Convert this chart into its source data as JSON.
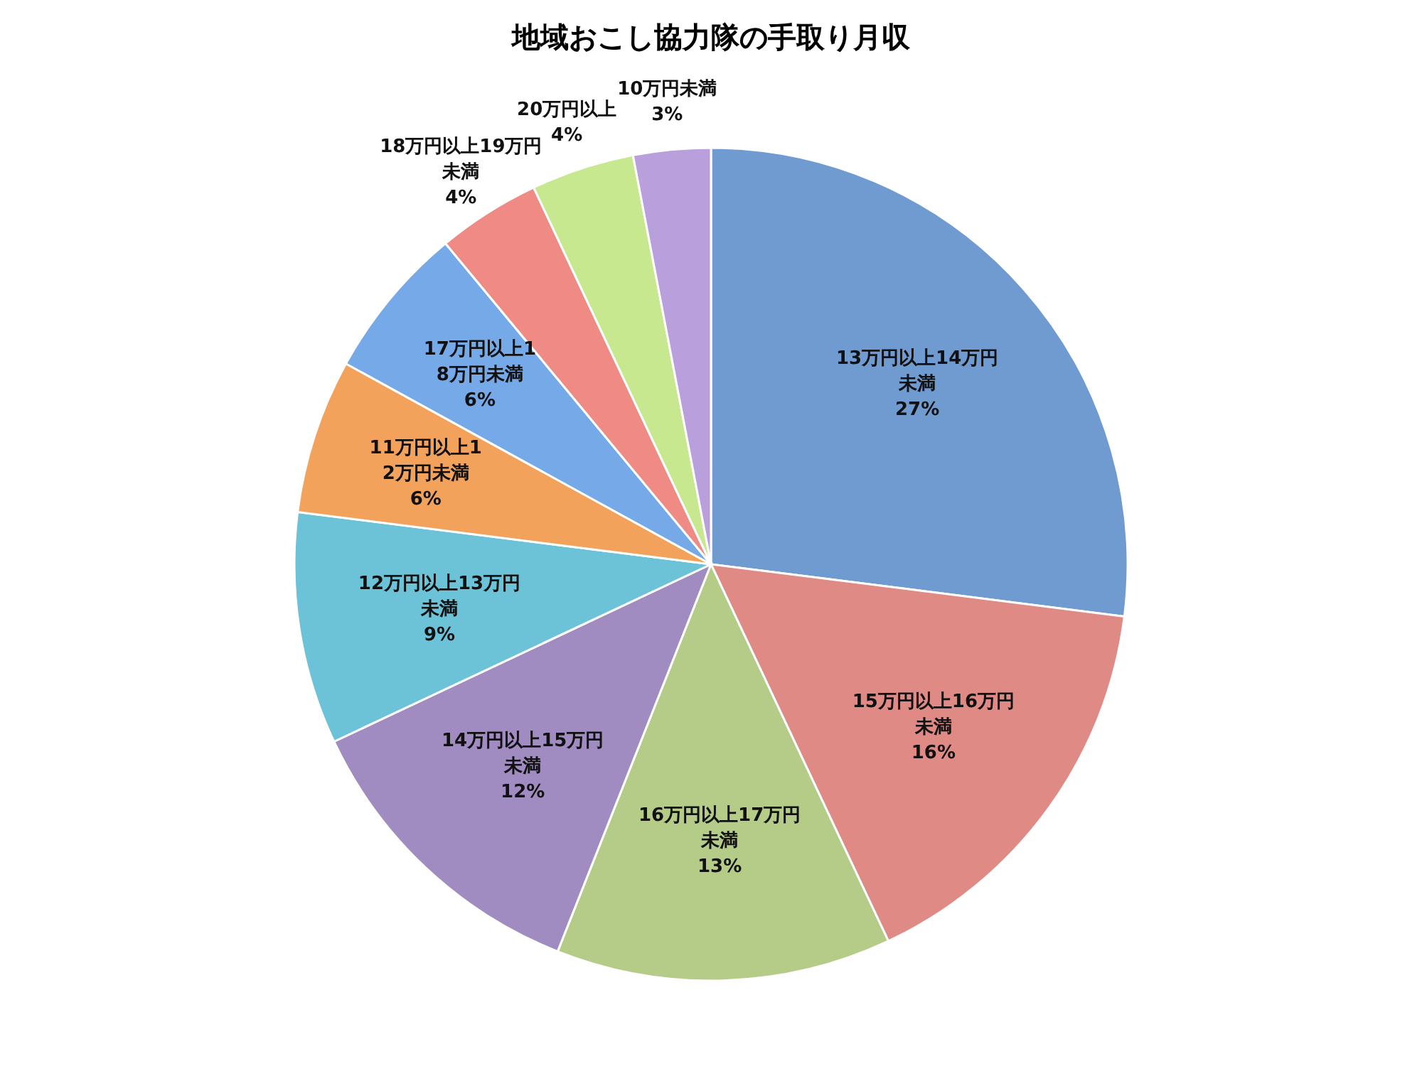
{
  "chart_data": {
    "type": "pie",
    "title": "地域おこし協力隊の手取り月収",
    "categories": [
      "13万円以上14万円未満",
      "15万円以上16万円未満",
      "16万円以上17万円未満",
      "14万円以上15万円未満",
      "12万円以上13万円未満",
      "11万円以上12万円未満",
      "17万円以上18万円未満",
      "18万円以上19万円未満",
      "20万円以上",
      "10万円未満"
    ],
    "values": [
      27,
      16,
      13,
      12,
      9,
      6,
      6,
      4,
      4,
      3
    ],
    "value_labels": [
      "27%",
      "16%",
      "13%",
      "12%",
      "9%",
      "6%",
      "6%",
      "4%",
      "4%",
      "3%"
    ],
    "colors": [
      "#6f9bd0",
      "#e08a85",
      "#b5cc88",
      "#a08cc0",
      "#6cc3d8",
      "#f2a25a",
      "#76a9e8",
      "#ef8a85",
      "#c8e890",
      "#b9a0dc"
    ]
  }
}
